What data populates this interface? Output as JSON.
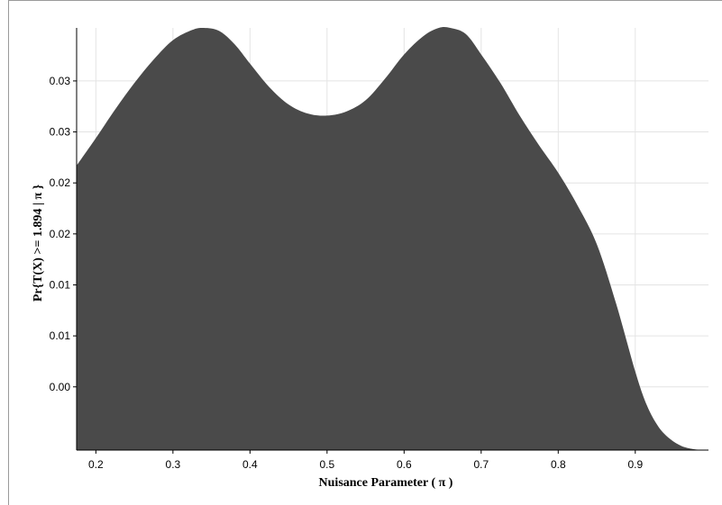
{
  "chart_data": {
    "type": "area",
    "title": "",
    "xlabel": "Nuisance Parameter ( π )",
    "ylabel": "Pr{T(X) >= 1.894 | π }",
    "xlim": [
      0.175,
      0.995
    ],
    "ylim": [
      -0.0062,
      0.0352
    ],
    "x_ticks": [
      0.2,
      0.3,
      0.4,
      0.5,
      0.6,
      0.7,
      0.8,
      0.9
    ],
    "x_tick_labels": [
      "0.2",
      "0.3",
      "0.4",
      "0.5",
      "0.6",
      "0.7",
      "0.8",
      "0.9"
    ],
    "y_ticks": [
      0.0,
      0.005,
      0.01,
      0.015,
      0.02,
      0.025,
      0.03
    ],
    "y_tick_labels": [
      "0.00",
      "0.01",
      "0.01",
      "0.02",
      "0.02",
      "0.03",
      "0.03"
    ],
    "grid": true,
    "fill_color": "#4a4a4a",
    "grid_color": "#e4e4e4",
    "x": [
      0.175,
      0.2,
      0.225,
      0.25,
      0.275,
      0.3,
      0.325,
      0.34,
      0.36,
      0.38,
      0.4,
      0.425,
      0.45,
      0.475,
      0.5,
      0.525,
      0.55,
      0.575,
      0.6,
      0.625,
      0.645,
      0.66,
      0.68,
      0.7,
      0.725,
      0.75,
      0.775,
      0.8,
      0.825,
      0.85,
      0.875,
      0.9,
      0.915,
      0.93,
      0.945,
      0.96,
      0.975,
      0.99
    ],
    "y": [
      0.0217,
      0.0244,
      0.0272,
      0.0298,
      0.0321,
      0.034,
      0.035,
      0.0352,
      0.0349,
      0.0336,
      0.0317,
      0.0294,
      0.0277,
      0.0268,
      0.0266,
      0.027,
      0.0281,
      0.0302,
      0.0326,
      0.0344,
      0.0352,
      0.0352,
      0.0346,
      0.0326,
      0.0298,
      0.0266,
      0.0237,
      0.021,
      0.0178,
      0.014,
      0.0082,
      0.0015,
      -0.0018,
      -0.0039,
      -0.0051,
      -0.0058,
      -0.0061,
      -0.0062
    ]
  }
}
